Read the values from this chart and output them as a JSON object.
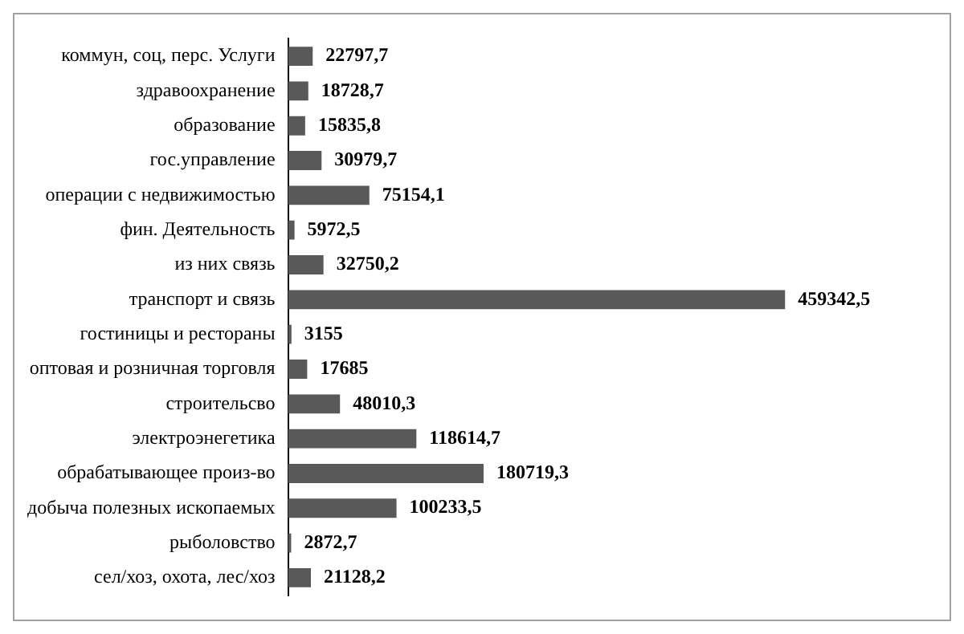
{
  "chart_data": {
    "type": "bar",
    "orientation": "horizontal",
    "categories": [
      "коммун, соц, перс. Услуги",
      "здравоохранение",
      "образование",
      "гос.управление",
      "операции с недвижимостью",
      "фин. Деятельность",
      "из них связь",
      "транспорт и связь",
      "гостиницы и рестораны",
      "оптовая и розничная торговля",
      "строительсво",
      "электроэнегетика",
      "обрабатывающее произ-во",
      "добыча полезных ископаемых",
      "рыболовство",
      "сел/хоз, охота, лес/хоз"
    ],
    "values": [
      22797.7,
      18728.7,
      15835.8,
      30979.7,
      75154.1,
      5972.5,
      32750.2,
      459342.5,
      3155,
      17685,
      48010.3,
      118614.7,
      180719.3,
      100233.5,
      2872.7,
      21128.2
    ],
    "value_labels": [
      "22797,7",
      "18728,7",
      "15835,8",
      "30979,7",
      "75154,1",
      "5972,5",
      "32750,2",
      "459342,5",
      "3155",
      "17685",
      "48010,3",
      "118614,7",
      "180719,3",
      "100233,5",
      "2872,7",
      "21128,2"
    ],
    "color": "#595959",
    "tick_labels": "y",
    "legend": false
  }
}
